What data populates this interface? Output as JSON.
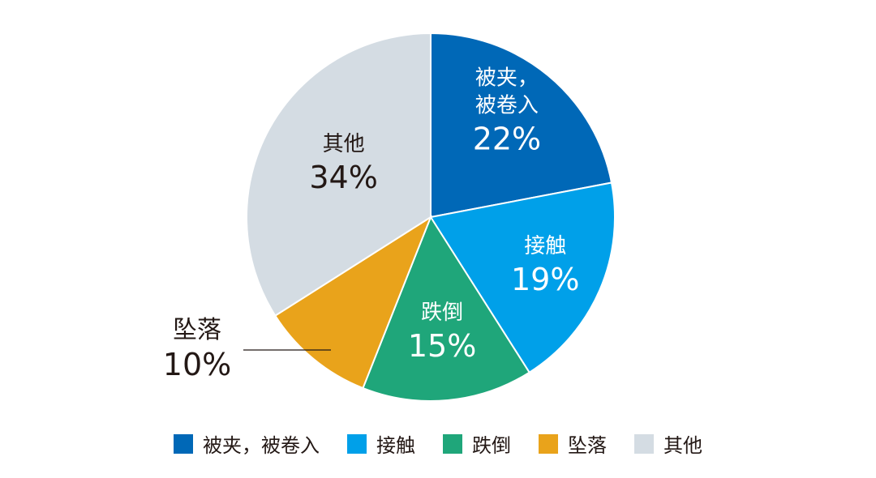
{
  "chart_data": {
    "type": "pie",
    "categories": [
      "被夹，被卷入",
      "接触",
      "跌倒",
      "坠落",
      "其他"
    ],
    "values": [
      22,
      19,
      15,
      10,
      34
    ],
    "value_labels": [
      "22%",
      "19%",
      "15%",
      "10%",
      "34%"
    ],
    "slice_label_lines": [
      [
        "被夹，",
        "被卷入"
      ],
      [
        "接触"
      ],
      [
        "跌倒"
      ],
      [
        "坠落"
      ],
      [
        "其他"
      ]
    ],
    "colors": [
      "#0068b7",
      "#00a0e9",
      "#1fa67a",
      "#e9a31b",
      "#d4dce3"
    ],
    "legend": {
      "placement": "bottom",
      "labels": [
        "被夹，被卷入",
        "接触",
        "跌倒",
        "坠落",
        "其他"
      ]
    },
    "start_angle": "12 o'clock",
    "direction": "clockwise"
  }
}
